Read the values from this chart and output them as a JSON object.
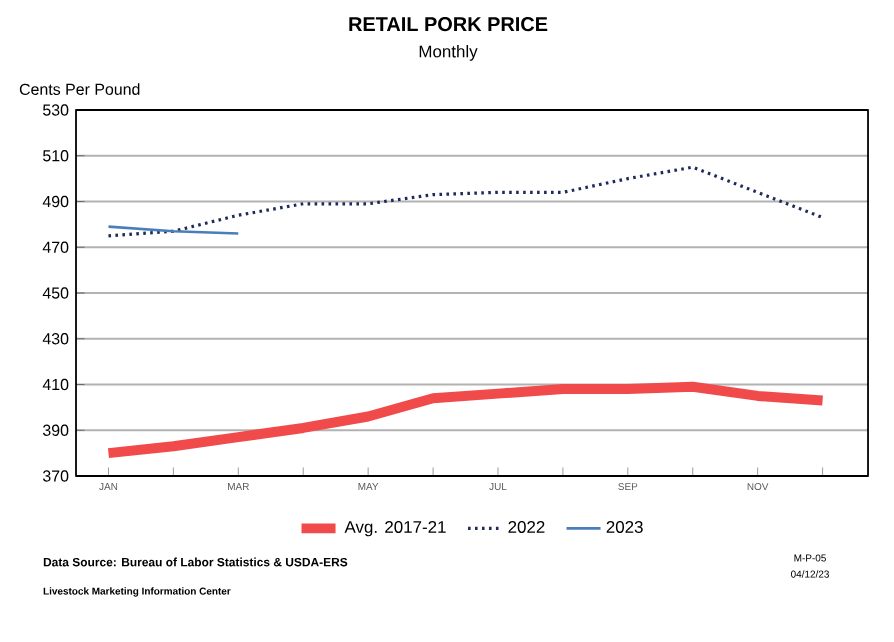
{
  "chart_data": {
    "type": "line",
    "title": "RETAIL PORK PRICE",
    "subtitle": "Monthly",
    "ylabel": "Cents Per Pound",
    "categories": [
      "JAN",
      null,
      "MAR",
      null,
      "MAY",
      null,
      "JUL",
      null,
      "SEP",
      null,
      "NOV",
      null
    ],
    "series": [
      {
        "name": "Avg. 2017-21",
        "color": "#f04a4a",
        "line_style": "solid",
        "values": [
          380,
          383,
          387,
          391,
          396,
          404,
          406,
          408,
          408,
          409,
          405,
          403
        ]
      },
      {
        "name": "2022",
        "color": "#1f2a5c",
        "line_style": "dotted",
        "values": [
          475,
          477,
          484,
          489,
          489,
          493,
          494,
          494,
          500,
          505,
          494,
          483
        ]
      },
      {
        "name": "2023",
        "color": "#4a7ebb",
        "line_style": "solid",
        "values": [
          479,
          477,
          476,
          null,
          null,
          null,
          null,
          null,
          null,
          null,
          null,
          null
        ]
      }
    ],
    "ylim": [
      370,
      530
    ],
    "yticks": [
      370,
      390,
      410,
      430,
      450,
      470,
      490,
      510,
      530
    ],
    "grid": "y",
    "legend": "bottom",
    "marker": "none",
    "annotations": [
      "Data Source: Bureau of Labor Statistics & USDA-ERS",
      "Livestock Marketing Information Center",
      "M-P-05",
      "04/12/23"
    ]
  }
}
